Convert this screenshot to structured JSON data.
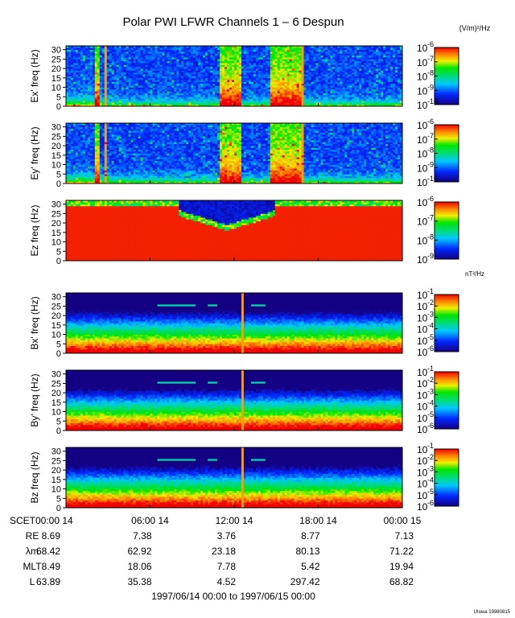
{
  "title": "Polar PWI LFWR Channels 1 – 6 Despun",
  "unit_electric": "(V/m)²/Hz",
  "unit_magnetic": "nT²/Hz",
  "credit": "UIowa 19980815",
  "time_range": "1997/06/14 00:00 to 1997/06/15 00:00",
  "chart_data": {
    "type": "heatmap",
    "x_range_hours": [
      0,
      24
    ],
    "y_range_hz": [
      0,
      32
    ],
    "freq_ticks": [
      0,
      5,
      10,
      15,
      20,
      25,
      30
    ],
    "time_ticks": [
      {
        "hour": 0,
        "label": "SCET00:00 14"
      },
      {
        "hour": 6,
        "label": "06:00 14"
      },
      {
        "hour": 12,
        "label": "12:00 14"
      },
      {
        "hour": 18,
        "label": "18:00 14"
      },
      {
        "hour": 24,
        "label": "00:00 15"
      }
    ],
    "panels": [
      {
        "name": "Ex' freq (Hz)",
        "kind": "electric",
        "color_scale": {
          "exp_min": -10,
          "exp_max": -6,
          "labels": [
            "-6",
            "-7",
            "-8",
            "-9",
            "-10"
          ]
        }
      },
      {
        "name": "Ey' freq (Hz)",
        "kind": "electric",
        "color_scale": {
          "exp_min": -10,
          "exp_max": -6,
          "labels": [
            "-6",
            "-7",
            "-8",
            "-9",
            "-10"
          ]
        }
      },
      {
        "name": "Ez freq (Hz)",
        "kind": "ez",
        "color_scale": {
          "exp_min": -9,
          "exp_max": -6,
          "labels": [
            "-6",
            "-7",
            "-8",
            "-9"
          ]
        }
      },
      {
        "name": "Bx' freq (Hz)",
        "kind": "magnetic",
        "color_scale": {
          "exp_min": -6,
          "exp_max": -1,
          "labels": [
            "-1",
            "-2",
            "-3",
            "-4",
            "-5",
            "-6"
          ]
        }
      },
      {
        "name": "By' freq (Hz)",
        "kind": "magnetic",
        "color_scale": {
          "exp_min": -6,
          "exp_max": -1,
          "labels": [
            "-1",
            "-2",
            "-3",
            "-4",
            "-5",
            "-6"
          ]
        }
      },
      {
        "name": "Bz freq (Hz)",
        "kind": "magnetic",
        "color_scale": {
          "exp_min": -6,
          "exp_max": -1,
          "labels": [
            "-1",
            "-2",
            "-3",
            "-4",
            "-5",
            "-6"
          ]
        }
      }
    ],
    "ephemeris": [
      {
        "label": "RE",
        "values": [
          "8.69",
          "7.38",
          "3.76",
          "8.77",
          "7.13"
        ]
      },
      {
        "label": "λm",
        "values": [
          "68.42",
          "62.92",
          "23.18",
          "80.13",
          "71.22"
        ]
      },
      {
        "label": "MLT",
        "values": [
          "8.49",
          "18.06",
          "7.78",
          "5.42",
          "19.94"
        ]
      },
      {
        "label": "L",
        "values": [
          "63.89",
          "35.38",
          "4.52",
          "297.42",
          "68.82"
        ]
      }
    ]
  }
}
